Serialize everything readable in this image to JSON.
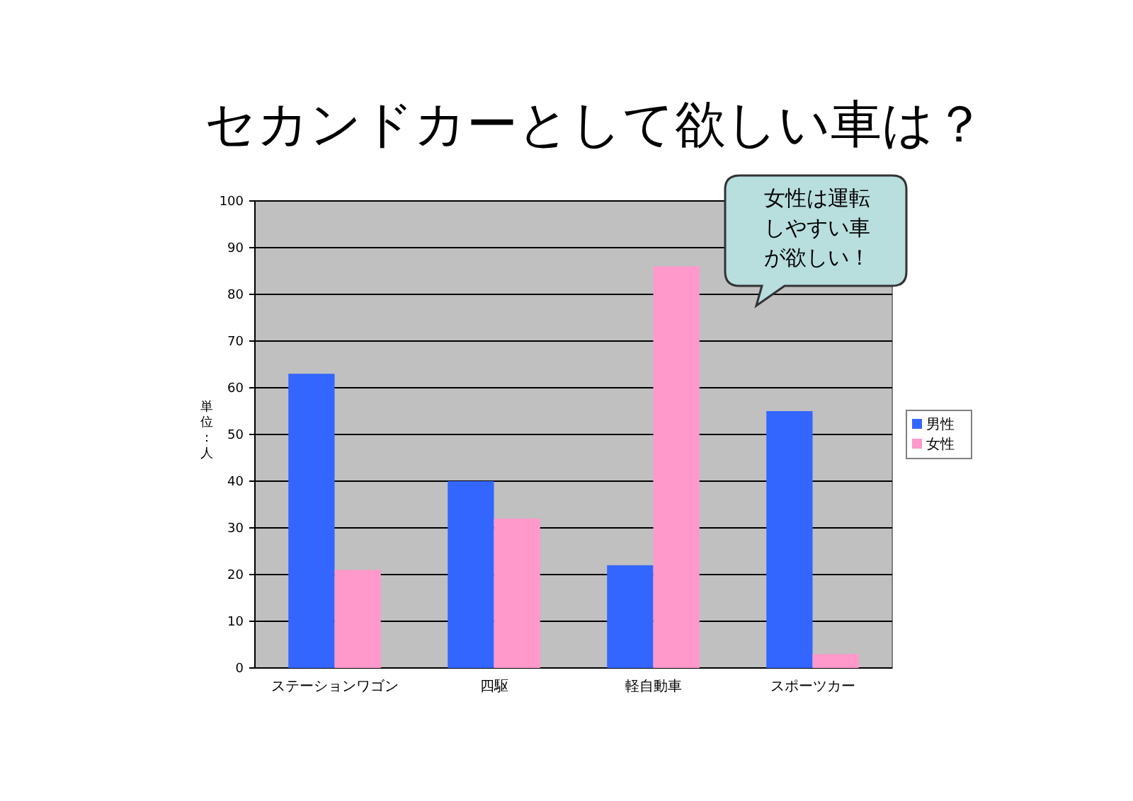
{
  "chart_data": {
    "type": "bar",
    "title": "セカンドカーとして欲しい車は？",
    "ylabel": "単位：人",
    "categories": [
      "ステーションワゴン",
      "四駆",
      "軽自動車",
      "スポーツカー"
    ],
    "series": [
      {
        "name": "男性",
        "color": "#3366ff",
        "values": [
          63,
          40,
          22,
          55
        ]
      },
      {
        "name": "女性",
        "color": "#ff99cc",
        "values": [
          21,
          32,
          86,
          3
        ]
      }
    ],
    "ylim": [
      0,
      100
    ],
    "yticks": [
      0,
      10,
      20,
      30,
      40,
      50,
      60,
      70,
      80,
      90,
      100
    ],
    "grid": "y",
    "legend": "right",
    "annotations": [
      "女性は運転しやすい車が欲しい！"
    ]
  }
}
